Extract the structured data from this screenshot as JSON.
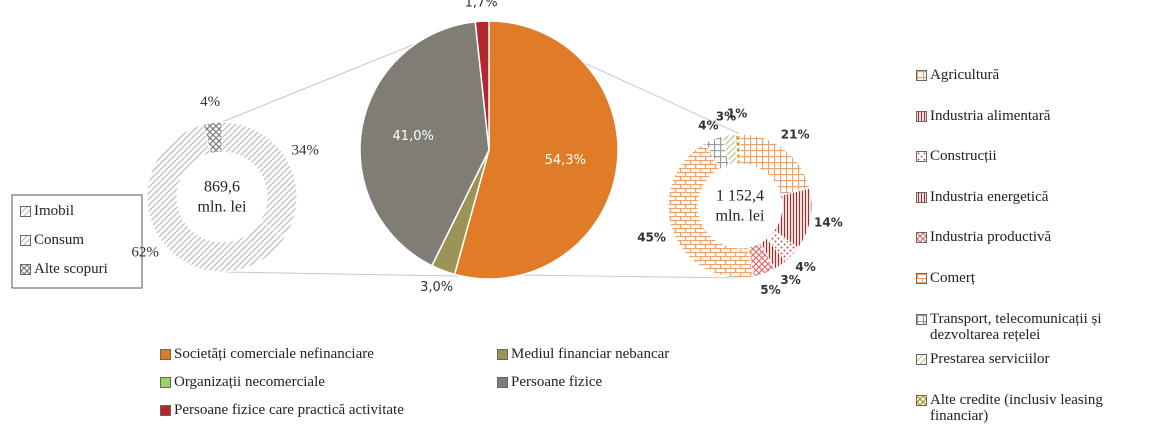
{
  "chart_data": [
    {
      "type": "donut",
      "center_label": [
        "869,6",
        "mln. lei"
      ],
      "categories": [
        "Imobil",
        "Consum",
        "Alte scopuri"
      ],
      "values": [
        34,
        62,
        4
      ],
      "value_labels": [
        "34%",
        "62%",
        "4%"
      ],
      "colors": [
        "#bfbfbf",
        "#bfbfbf",
        "#7f7f7f"
      ]
    },
    {
      "type": "pie",
      "categories": [
        "Societăți comerciale nefinanciare",
        "Mediul financiar nebancar",
        "Organizații necomerciale",
        "Persoane fizice",
        "Persoane fizice care practică activitate"
      ],
      "values": [
        54.3,
        3.0,
        0,
        41.0,
        1.7
      ],
      "value_labels": [
        "54,3%",
        "3,0%",
        null,
        "41,0%",
        "1,7%"
      ],
      "colors": [
        "#e07b27",
        "#9c9457",
        "#9bd35f",
        "#7f7d74",
        "#b3262e"
      ]
    },
    {
      "type": "donut",
      "center_label": [
        "1 152,4",
        "mln. lei"
      ],
      "categories": [
        "Agricultură",
        "Industria alimentară",
        "Construcții",
        "Industria energetică",
        "Industria productivă",
        "Comerț",
        "Transport, telecomunicații și dezvoltarea rețelei",
        "Prestarea serviciilor",
        "Alte credite (inclusiv leasing financiar)"
      ],
      "values": [
        21,
        14,
        4,
        3,
        5,
        45,
        4,
        3,
        1
      ],
      "value_labels": [
        "21%",
        "14%",
        "4%",
        "3%",
        "5%",
        "45%",
        "4%",
        "3%",
        "1%"
      ],
      "colors": [
        "#e9a36f",
        "#a0302c",
        "#d0504a",
        "#a0302c",
        "#e07070",
        "#e9a36f",
        "#9a9a9a",
        "#c8c890",
        "#b8901c"
      ]
    }
  ]
}
